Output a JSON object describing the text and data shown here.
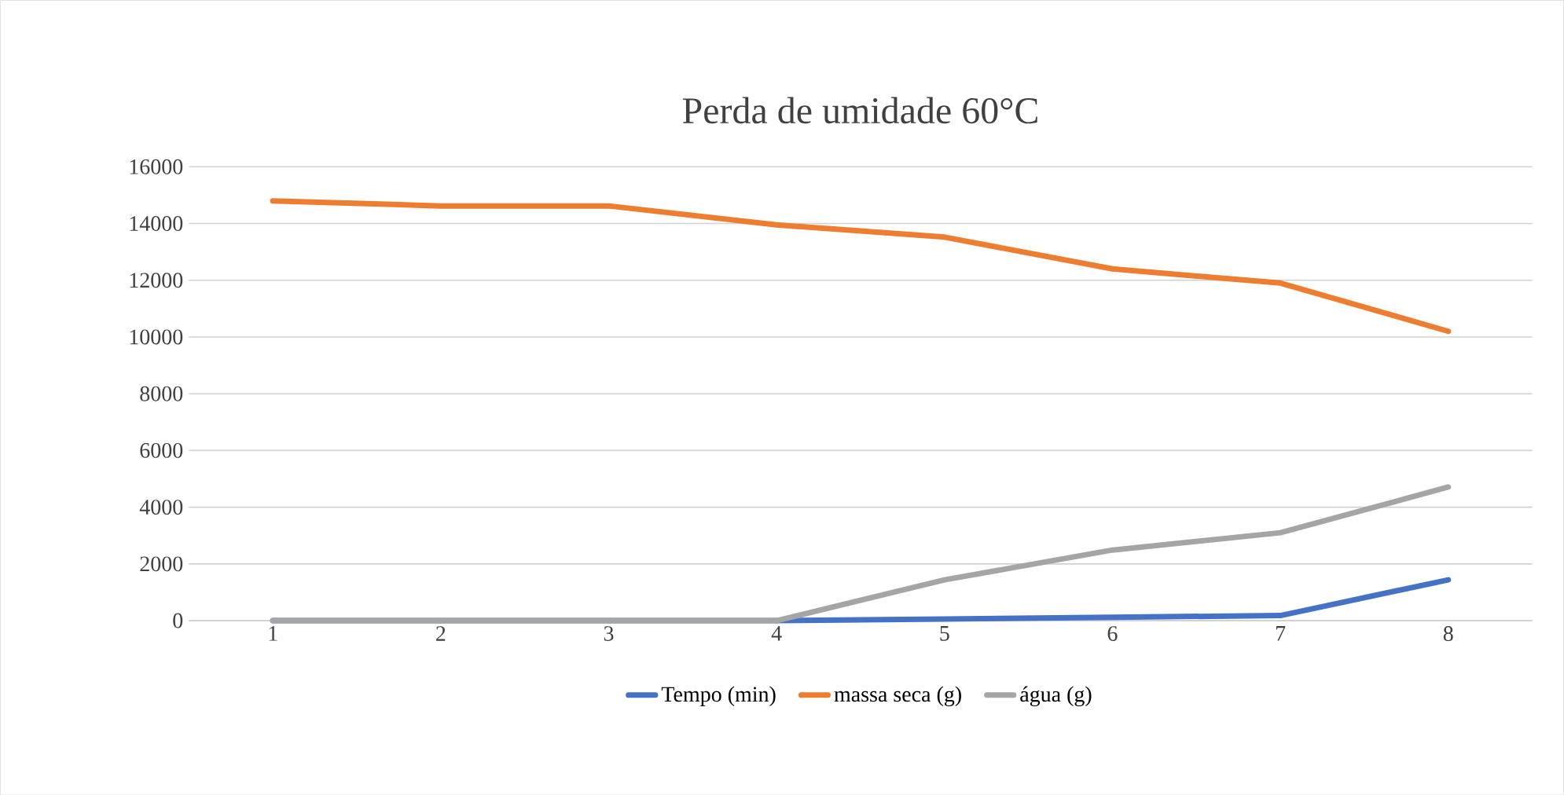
{
  "chart_data": {
    "type": "line",
    "title": "Perda de umidade 60°C",
    "categories": [
      "1",
      "2",
      "3",
      "4",
      "5",
      "6",
      "7",
      "8"
    ],
    "series": [
      {
        "name": "Tempo (min)",
        "color": "#4472c4",
        "values": [
          0,
          0,
          0,
          0,
          60,
          120,
          180,
          1440
        ]
      },
      {
        "name": "massa seca (g)",
        "color": "#ed7d31",
        "values": [
          14800,
          14620,
          14620,
          13950,
          13520,
          12400,
          11900,
          10200
        ]
      },
      {
        "name": "água (g)",
        "color": "#a5a5a5",
        "values": [
          0,
          0,
          0,
          0,
          1440,
          2490,
          3100,
          4710
        ]
      }
    ],
    "ylim": [
      0,
      16000
    ],
    "yticks": [
      0,
      2000,
      4000,
      6000,
      8000,
      10000,
      12000,
      14000,
      16000
    ],
    "grid": "y",
    "legend": "bottom",
    "marker": "none",
    "line_style": "solid"
  }
}
